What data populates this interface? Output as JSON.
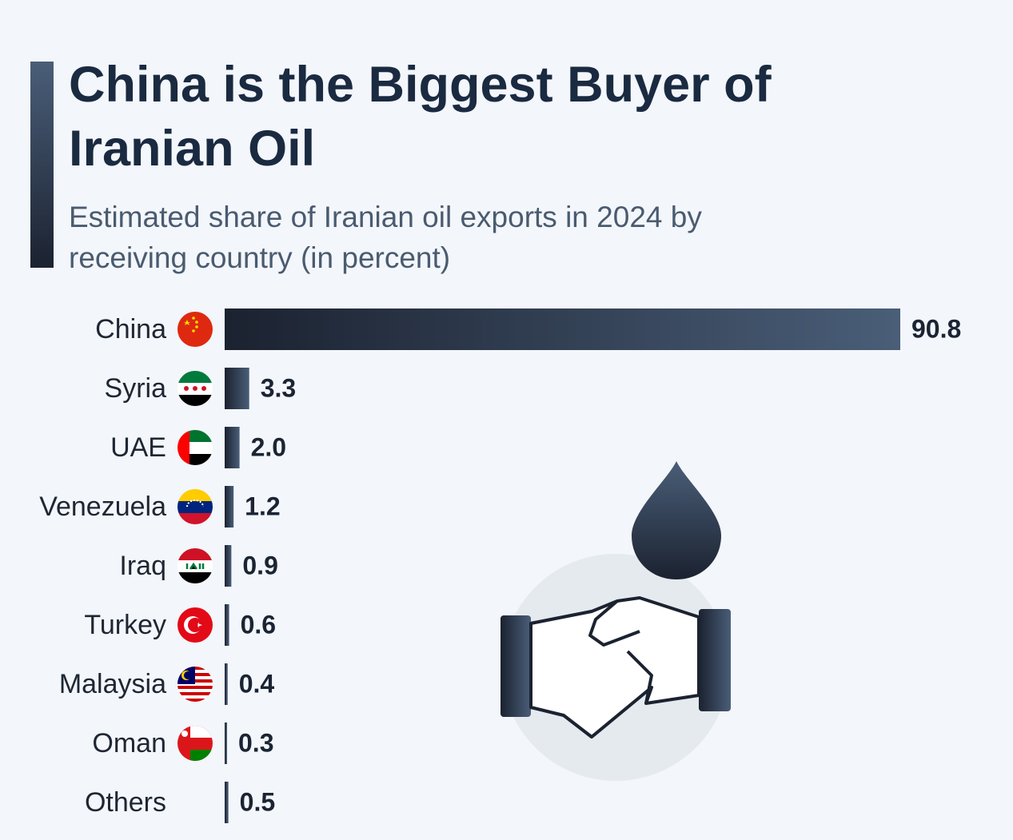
{
  "chart_data": {
    "type": "bar",
    "orientation": "horizontal",
    "title": "China is the Biggest Buyer of Iranian Oil",
    "subtitle": "Estimated share of Iranian oil exports in 2024 by receiving country (in percent)",
    "categories": [
      "China",
      "Syria",
      "UAE",
      "Venezuela",
      "Iraq",
      "Turkey",
      "Malaysia",
      "Oman",
      "Others"
    ],
    "values": [
      90.8,
      3.3,
      2.0,
      1.2,
      0.9,
      0.6,
      0.4,
      0.3,
      0.5
    ],
    "value_labels": [
      "90.8",
      "3.3",
      "2.0",
      "1.2",
      "0.9",
      "0.6",
      "0.4",
      "0.3",
      "0.5"
    ],
    "color": "#2f3d52"
  }
}
